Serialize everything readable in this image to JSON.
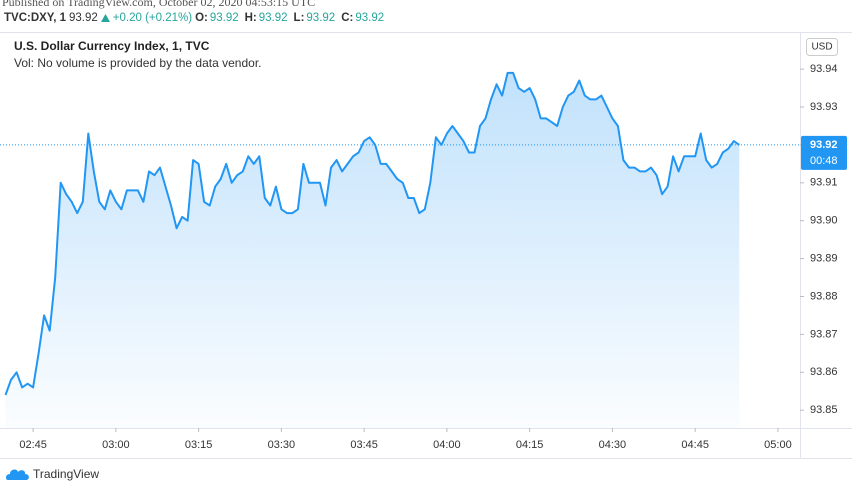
{
  "header": {
    "published": "Published on TradingView.com, October 02, 2020 04:53:15 UTC",
    "symbol": "TVC:DXY, 1",
    "last": 93.92,
    "change": "+0.20 (+0.21%)",
    "ohlc": [
      {
        "label": "O:",
        "value": 93.92
      },
      {
        "label": "H:",
        "value": 93.92
      },
      {
        "label": "L:",
        "value": 93.92
      },
      {
        "label": "C:",
        "value": 93.92
      }
    ]
  },
  "chart_data": {
    "type": "line",
    "title": "U.S. Dollar Currency Index, 1, TVC",
    "subtitle": "Vol: No volume is provided by the data vendor.",
    "currency": "USD",
    "countdown": "00:48",
    "x": [
      "02:40",
      "02:41",
      "02:42",
      "02:43",
      "02:44",
      "02:45",
      "02:46",
      "02:47",
      "02:48",
      "02:49",
      "02:50",
      "02:51",
      "02:52",
      "02:53",
      "02:54",
      "02:55",
      "02:56",
      "02:57",
      "02:58",
      "02:59",
      "03:00",
      "03:01",
      "03:02",
      "03:03",
      "03:04",
      "03:05",
      "03:06",
      "03:07",
      "03:08",
      "03:09",
      "03:10",
      "03:11",
      "03:12",
      "03:13",
      "03:14",
      "03:15",
      "03:16",
      "03:17",
      "03:18",
      "03:19",
      "03:20",
      "03:21",
      "03:22",
      "03:23",
      "03:24",
      "03:25",
      "03:26",
      "03:27",
      "03:28",
      "03:29",
      "03:30",
      "03:31",
      "03:32",
      "03:33",
      "03:34",
      "03:35",
      "03:36",
      "03:37",
      "03:38",
      "03:39",
      "03:40",
      "03:41",
      "03:42",
      "03:43",
      "03:44",
      "03:45",
      "03:46",
      "03:47",
      "03:48",
      "03:49",
      "03:50",
      "03:51",
      "03:52",
      "03:53",
      "03:54",
      "03:55",
      "03:56",
      "03:57",
      "03:58",
      "03:59",
      "04:00",
      "04:01",
      "04:02",
      "04:03",
      "04:04",
      "04:05",
      "04:06",
      "04:07",
      "04:08",
      "04:09",
      "04:10",
      "04:11",
      "04:12",
      "04:13",
      "04:14",
      "04:15",
      "04:16",
      "04:17",
      "04:18",
      "04:19",
      "04:20",
      "04:21",
      "04:22",
      "04:23",
      "04:24",
      "04:25",
      "04:26",
      "04:27",
      "04:28",
      "04:29",
      "04:30",
      "04:31",
      "04:32",
      "04:33",
      "04:34",
      "04:35",
      "04:36",
      "04:37",
      "04:38",
      "04:39",
      "04:40",
      "04:41",
      "04:42",
      "04:43",
      "04:44",
      "04:45",
      "04:46",
      "04:47",
      "04:48",
      "04:49",
      "04:50",
      "04:51",
      "04:52",
      "04:53"
    ],
    "series": [
      {
        "name": "DXY",
        "color": "#2196f3",
        "values": [
          93.854,
          93.858,
          93.86,
          93.856,
          93.857,
          93.856,
          93.865,
          93.875,
          93.871,
          93.885,
          93.91,
          93.907,
          93.905,
          93.902,
          93.905,
          93.923,
          93.913,
          93.905,
          93.903,
          93.908,
          93.905,
          93.903,
          93.908,
          93.908,
          93.908,
          93.905,
          93.913,
          93.912,
          93.914,
          93.909,
          93.904,
          93.898,
          93.901,
          93.9,
          93.916,
          93.915,
          93.905,
          93.904,
          93.909,
          93.911,
          93.915,
          93.91,
          93.912,
          93.913,
          93.917,
          93.915,
          93.917,
          93.906,
          93.904,
          93.909,
          93.903,
          93.902,
          93.902,
          93.903,
          93.915,
          93.91,
          93.91,
          93.91,
          93.904,
          93.914,
          93.916,
          93.913,
          93.915,
          93.917,
          93.918,
          93.921,
          93.922,
          93.92,
          93.915,
          93.915,
          93.913,
          93.911,
          93.91,
          93.906,
          93.906,
          93.902,
          93.903,
          93.91,
          93.922,
          93.92,
          93.923,
          93.925,
          93.923,
          93.921,
          93.918,
          93.918,
          93.925,
          93.927,
          93.932,
          93.936,
          93.933,
          93.939,
          93.939,
          93.935,
          93.934,
          93.935,
          93.932,
          93.927,
          93.927,
          93.926,
          93.925,
          93.93,
          93.933,
          93.934,
          93.937,
          93.933,
          93.932,
          93.932,
          93.933,
          93.93,
          93.927,
          93.925,
          93.916,
          93.914,
          93.914,
          93.913,
          93.913,
          93.914,
          93.912,
          93.907,
          93.909,
          93.917,
          93.913,
          93.917,
          93.917,
          93.917,
          93.923,
          93.916,
          93.914,
          93.915,
          93.918,
          93.919,
          93.921,
          93.92
        ]
      }
    ],
    "xlim": [
      "02:39",
      "05:04"
    ],
    "xticks": [
      "02:45",
      "03:00",
      "03:15",
      "03:30",
      "03:45",
      "04:00",
      "04:15",
      "04:30",
      "04:45",
      "05:00"
    ],
    "ylim": [
      93.8453,
      93.949
    ],
    "yticks": [
      93.94,
      93.93,
      93.92,
      93.91,
      {
        "value": 93.9,
        "label": "93.90"
      },
      93.89,
      93.88,
      93.87,
      93.86,
      93.85
    ]
  },
  "footer": "TradingView"
}
